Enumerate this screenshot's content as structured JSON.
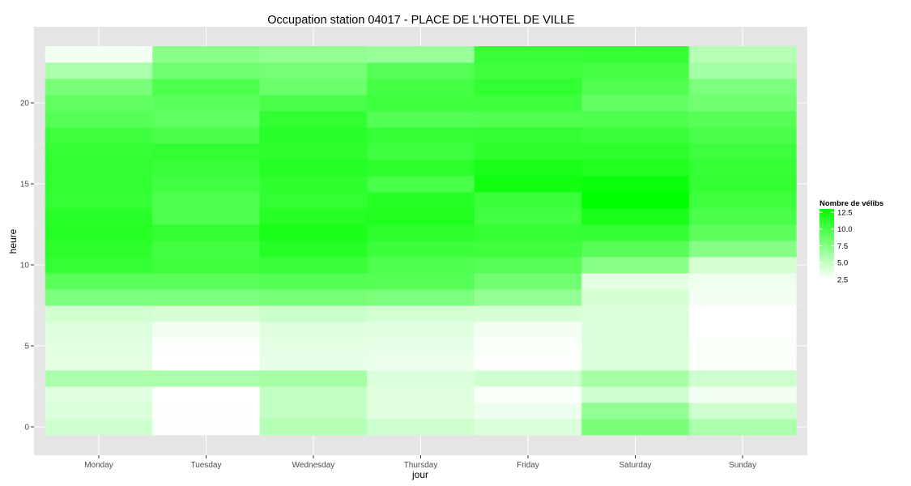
{
  "chart_data": {
    "type": "heatmap",
    "title": "Occupation station 04017 - PLACE DE L'HOTEL DE VILLE",
    "xlabel": "jour",
    "ylabel": "heure",
    "x_categories": [
      "Monday",
      "Tuesday",
      "Wednesday",
      "Thursday",
      "Friday",
      "Saturday",
      "Sunday"
    ],
    "y_hours": [
      0,
      1,
      2,
      3,
      4,
      5,
      6,
      7,
      8,
      9,
      10,
      11,
      12,
      13,
      14,
      15,
      16,
      17,
      18,
      19,
      20,
      21,
      22,
      23
    ],
    "y_ticks": [
      0,
      5,
      10,
      15,
      20
    ],
    "y_tick_labels": [
      "0",
      "5",
      "10",
      "15",
      "20"
    ],
    "ylim": [
      -0.5,
      23.5
    ],
    "values": [
      [
        4.5,
        2.6,
        5.5,
        4.5,
        4.0,
        8.0,
        6.0
      ],
      [
        4.0,
        2.6,
        5.0,
        3.8,
        3.3,
        7.0,
        4.5
      ],
      [
        3.8,
        2.5,
        5.0,
        3.8,
        2.7,
        4.5,
        3.0
      ],
      [
        6.0,
        6.0,
        6.2,
        4.0,
        4.5,
        6.2,
        4.5
      ],
      [
        3.6,
        2.5,
        3.5,
        3.3,
        2.6,
        4.0,
        2.7
      ],
      [
        3.7,
        2.6,
        3.6,
        3.5,
        2.7,
        4.0,
        2.7
      ],
      [
        3.9,
        3.0,
        3.9,
        3.8,
        3.0,
        4.0,
        2.5
      ],
      [
        4.4,
        4.2,
        4.7,
        4.3,
        4.2,
        4.0,
        2.5
      ],
      [
        7.8,
        7.8,
        8.2,
        7.9,
        6.9,
        4.2,
        3.0
      ],
      [
        9.3,
        9.3,
        9.6,
        9.5,
        8.3,
        3.7,
        3.2
      ],
      [
        10.8,
        10.4,
        10.7,
        9.8,
        9.5,
        7.3,
        4.3
      ],
      [
        11.2,
        10.3,
        11.5,
        10.6,
        10.4,
        9.4,
        7.5
      ],
      [
        11.5,
        11.0,
        12.0,
        11.2,
        10.8,
        11.0,
        9.2
      ],
      [
        11.3,
        9.8,
        11.5,
        11.7,
        10.3,
        12.0,
        10.0
      ],
      [
        10.8,
        9.8,
        11.0,
        11.5,
        10.6,
        13.0,
        10.5
      ],
      [
        11.0,
        10.3,
        11.1,
        10.1,
        12.3,
        12.6,
        10.9
      ],
      [
        11.0,
        10.7,
        11.5,
        11.2,
        12.0,
        11.7,
        10.8
      ],
      [
        10.8,
        11.0,
        11.2,
        10.5,
        11.2,
        11.2,
        10.5
      ],
      [
        10.5,
        10.0,
        11.3,
        10.8,
        11.0,
        10.7,
        9.9
      ],
      [
        9.5,
        9.1,
        11.0,
        9.6,
        9.7,
        9.8,
        9.4
      ],
      [
        9.0,
        9.3,
        10.0,
        10.4,
        10.5,
        9.0,
        8.4
      ],
      [
        8.0,
        9.8,
        8.6,
        10.2,
        11.0,
        9.7,
        7.9
      ],
      [
        6.0,
        8.4,
        8.2,
        9.5,
        10.4,
        10.2,
        6.3
      ],
      [
        3.0,
        7.3,
        7.0,
        6.7,
        10.7,
        10.8,
        5.6
      ]
    ],
    "legend": {
      "title": "Nombre de vélibs",
      "breaks": [
        "12.5",
        "10.0",
        "7.5",
        "5.0",
        "2.5"
      ],
      "break_values": [
        12.5,
        10.0,
        7.5,
        5.0,
        2.5
      ],
      "min": 2.5,
      "max": 13.0,
      "low_color": "#ffffff",
      "high_color": "#00ff00",
      "placement": "right"
    },
    "panel_background": "#e5e5e5",
    "grid_color": "#ffffff",
    "grid": true
  }
}
